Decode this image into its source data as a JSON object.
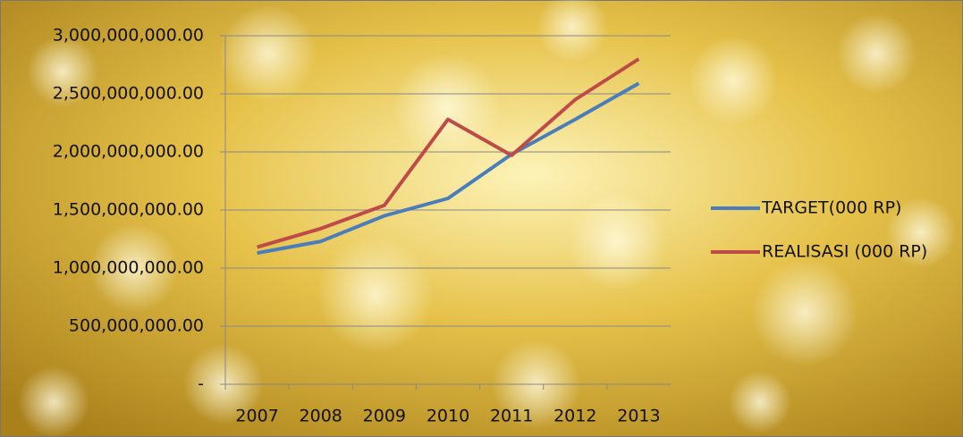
{
  "chart_data": {
    "type": "line",
    "categories": [
      "2007",
      "2008",
      "2009",
      "2010",
      "2011",
      "2012",
      "2013"
    ],
    "series": [
      {
        "name": "TARGET(000 RP)",
        "color": "#4a7ebb",
        "values": [
          1130000000,
          1230000000,
          1450000000,
          1600000000,
          1980000000,
          2280000000,
          2590000000
        ]
      },
      {
        "name": "REALISASI (000 RP)",
        "color": "#be4b48",
        "values": [
          1180000000,
          1340000000,
          1540000000,
          2280000000,
          1970000000,
          2450000000,
          2800000000
        ]
      }
    ],
    "ylim": [
      0,
      3000000000
    ],
    "yticks": [
      {
        "value": 0,
        "label": "-"
      },
      {
        "value": 500000000,
        "label": "500,000,000.00"
      },
      {
        "value": 1000000000,
        "label": "1,000,000,000.00"
      },
      {
        "value": 1500000000,
        "label": "1,500,000,000.00"
      },
      {
        "value": 2000000000,
        "label": "2,000,000,000.00"
      },
      {
        "value": 2500000000,
        "label": "2,500,000,000.00"
      },
      {
        "value": 3000000000,
        "label": "3,000,000,000.00"
      }
    ],
    "grid": true,
    "legend": "right"
  }
}
